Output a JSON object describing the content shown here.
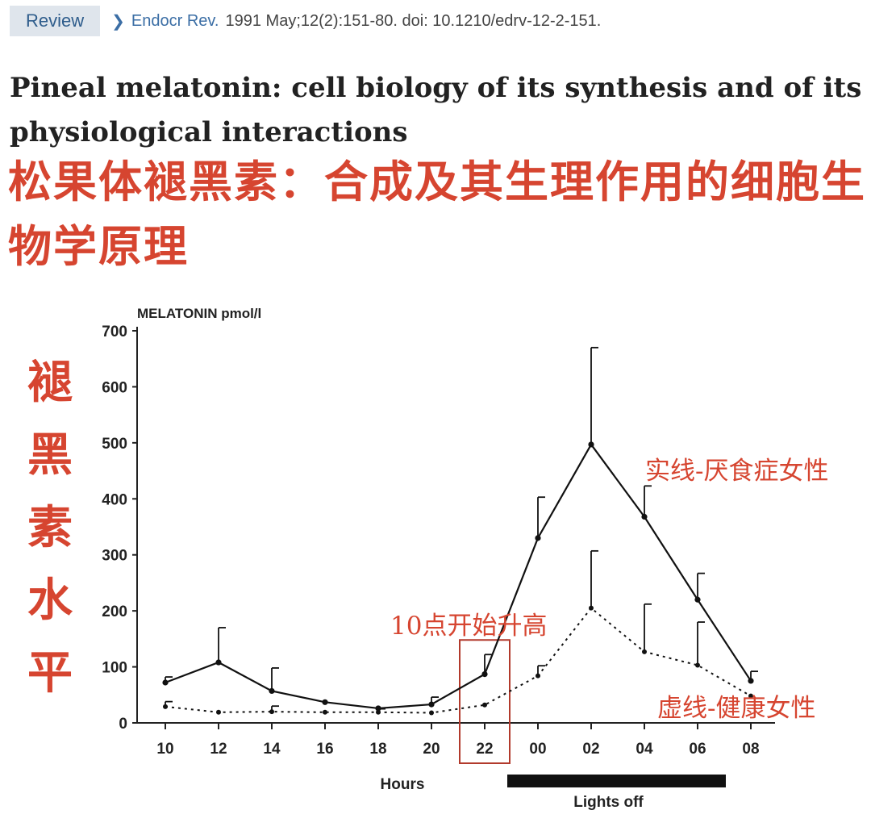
{
  "header": {
    "badge": "Review",
    "journal": "Endocr Rev.",
    "citation": "1991 May;12(2):151-80. doi: 10.1210/edrv-12-2-151.",
    "chevron_icon": "chevron-right-icon"
  },
  "article": {
    "title_en": "Pineal melatonin: cell biology of its synthesis and of its physiological interactions",
    "title_cn": "松果体褪黑素：合成及其生理作用的细胞生物学原理"
  },
  "annotations": {
    "ylabel_cn": "褪黑素水平",
    "solid_label": "实线-厌食症女性",
    "dashed_label": "虚线-健康女性",
    "rise_label": "10点开始升高"
  },
  "colors": {
    "annotation_red": "#d64530",
    "link_blue": "#3b6ea5"
  },
  "chart_data": {
    "type": "line",
    "ylabel": "MELATONIN pmol/l",
    "xlabel": "Hours",
    "bar_label": "Lights off",
    "categories": [
      "10",
      "12",
      "14",
      "16",
      "18",
      "20",
      "22",
      "00",
      "02",
      "04",
      "06",
      "08"
    ],
    "yticks": [
      0,
      100,
      200,
      300,
      400,
      500,
      600,
      700
    ],
    "ylim": [
      0,
      700
    ],
    "lights_off_range": [
      "22",
      "07"
    ],
    "highlight_category": "22",
    "series": [
      {
        "style": "solid",
        "values": [
          72,
          108,
          57,
          37,
          26,
          33,
          87,
          330,
          497,
          368,
          220,
          75
        ],
        "error_upper": [
          82,
          170,
          98,
          null,
          null,
          46,
          122,
          403,
          670,
          423,
          267,
          92
        ]
      },
      {
        "style": "dashed",
        "values": [
          29,
          19,
          20,
          19,
          19,
          18,
          32,
          84,
          205,
          127,
          103,
          48
        ],
        "error_upper": [
          38,
          null,
          30,
          null,
          25,
          null,
          null,
          102,
          307,
          212,
          180,
          null
        ]
      }
    ]
  }
}
